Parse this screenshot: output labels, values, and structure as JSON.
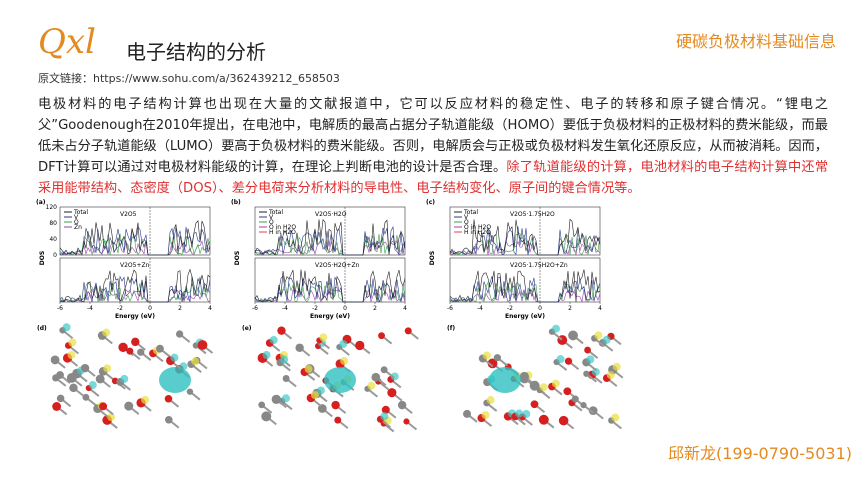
{
  "header": {
    "logo": "Qxl",
    "title": "电子结构的分析",
    "brand": "硬碳负极材料基础信息"
  },
  "source": {
    "label": "原文链接：",
    "url": "https://www.sohu.com/a/362439212_658503"
  },
  "body": {
    "text": "电极材料的电子结构计算也出现在大量的文献报道中，它可以反应材料的稳定性、电子的转移和原子键合情况。“锂电之父”Goodenough在2010年提出，在电池中，电解质的最高占据分子轨道能级（HOMO）要低于负极材料的正极材料的费米能级，而最低未占分子轨道能级（LUMO）要高于负极材料的费米能级。否则，电解质会与正极或负极材料发生氧化还原反应，从而被消耗。因而，DFT计算可以通过对电极材料能级的计算，在理论上判断电池的设计是否合理。",
    "highlight": "除了轨道能级的计算，电池材料的电子结构计算中还常采用能带结构、态密度（DOS）、差分电荷来分析材料的导电性、电子结构变化、原子间的键合情况等。"
  },
  "figure": {
    "x_label": "Energy (eV)",
    "y_label": "DOS",
    "xticks": [
      -6,
      -4,
      -2,
      0,
      2,
      4
    ],
    "yticks": [
      0,
      40,
      80,
      120
    ],
    "panels": [
      {
        "label": "(a)",
        "top_title": "V2O5",
        "bottom_title": "V2O5+Zn",
        "legend": [
          "Total",
          "V",
          "O",
          "Zn"
        ]
      },
      {
        "label": "(b)",
        "top_title": "V2O5·H2O",
        "bottom_title": "V2O5·H2O+Zn",
        "legend": [
          "Total",
          "V",
          "O",
          "O in H2O",
          "H in H2O"
        ]
      },
      {
        "label": "(c)",
        "top_title": "V2O5·1.75H2O",
        "bottom_title": "V2O5·1.75H2O+Zn",
        "legend": [
          "Total",
          "V",
          "O",
          "O in H2O",
          "H in H2O"
        ]
      }
    ],
    "image_labels": [
      "(d)",
      "(e)",
      "(f)"
    ]
  },
  "footer": {
    "contact": "邱新龙(199-0790-5031)"
  }
}
